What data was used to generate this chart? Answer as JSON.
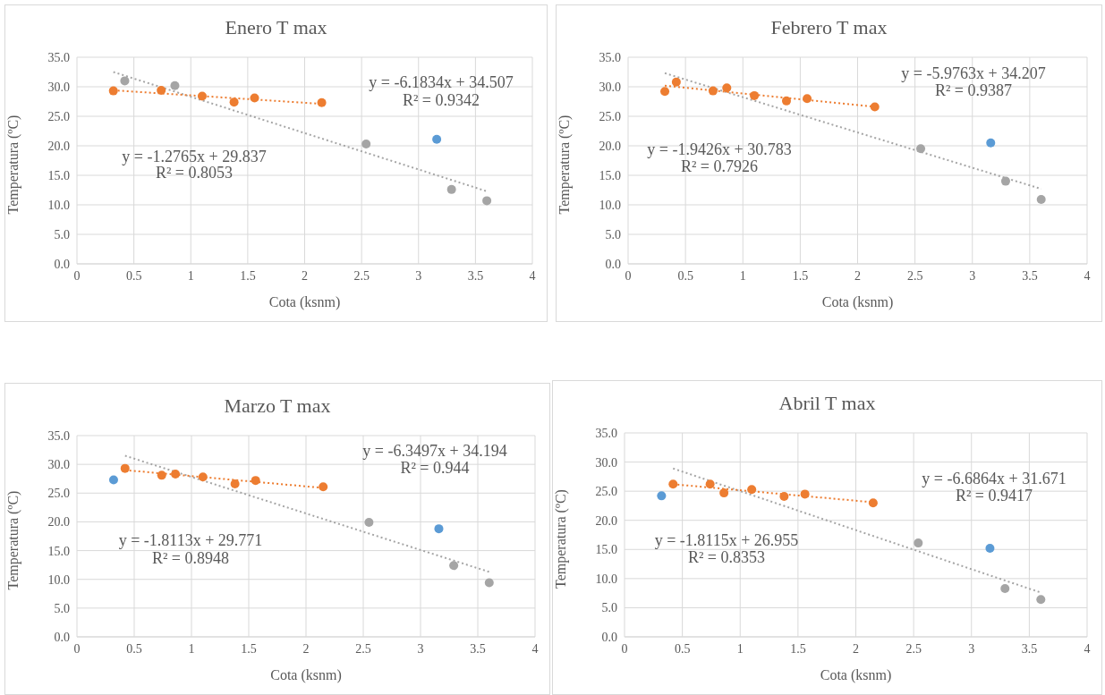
{
  "chart_data": [
    {
      "type": "scatter",
      "title": "Enero T max",
      "xlabel": "Cota (ksnm)",
      "ylabel": "Temperatura (ºC)",
      "xlim": [
        0,
        4
      ],
      "xticks": [
        0,
        0.5,
        1,
        1.5,
        2,
        2.5,
        3,
        3.5,
        4
      ],
      "ylim": [
        0,
        35
      ],
      "yticks": [
        {
          "value": 0,
          "label": "0.0"
        },
        {
          "value": 5,
          "label": "5.0"
        },
        {
          "value": 10,
          "label": "10.0"
        },
        {
          "value": 15,
          "label": "15.0"
        },
        {
          "value": 20,
          "label": "20.0"
        },
        {
          "value": 25,
          "label": "25.0"
        },
        {
          "value": 30,
          "label": "30.0"
        },
        {
          "value": 35,
          "label": "35.0"
        }
      ],
      "grid": true,
      "marker": "circle",
      "series": [
        {
          "type": "line",
          "color": "#a5a5a5",
          "line_style": "dotted",
          "marker": "none",
          "x": [
            0.32,
            3.6
          ],
          "values": [
            32.5,
            12.3
          ]
        },
        {
          "type": "line",
          "color": "#ed7d31",
          "line_style": "dotted",
          "marker": "none",
          "x": [
            0.32,
            2.15
          ],
          "values": [
            29.4,
            27.1
          ]
        },
        {
          "type": "scatter",
          "color": "#ed7d31",
          "x": [
            0.32,
            0.74,
            1.1,
            1.38,
            1.56,
            2.15
          ],
          "values": [
            29.3,
            29.4,
            28.4,
            27.4,
            28.1,
            27.3
          ]
        },
        {
          "type": "scatter",
          "color": "#a5a5a5",
          "x": [
            0.42,
            0.86,
            2.54,
            3.29,
            3.6
          ],
          "values": [
            31.0,
            30.2,
            20.3,
            12.6,
            10.7
          ]
        },
        {
          "type": "scatter",
          "color": "#5b9bd5",
          "x": [
            3.16
          ],
          "values": [
            21.1
          ]
        }
      ],
      "annotations": [
        "y = -6.1834x + 34.507",
        "R² = 0.9342",
        "y = -1.2765x + 29.837",
        "R² = 0.8053"
      ]
    },
    {
      "type": "scatter",
      "title": "Febrero T max",
      "xlabel": "Cota (ksnm)",
      "ylabel": "Temperatura (ºC)",
      "xlim": [
        0,
        4
      ],
      "xticks": [
        0,
        0.5,
        1,
        1.5,
        2,
        2.5,
        3,
        3.5,
        4
      ],
      "ylim": [
        0,
        35
      ],
      "yticks": [
        {
          "value": 0,
          "label": "0.0"
        },
        {
          "value": 5,
          "label": "5.0"
        },
        {
          "value": 10,
          "label": "10.0"
        },
        {
          "value": 15,
          "label": "15.0"
        },
        {
          "value": 20,
          "label": "20.0"
        },
        {
          "value": 25,
          "label": "25.0"
        },
        {
          "value": 30,
          "label": "30.0"
        },
        {
          "value": 35,
          "label": "35.0"
        }
      ],
      "grid": true,
      "marker": "circle",
      "series": [
        {
          "type": "line",
          "color": "#a5a5a5",
          "line_style": "dotted",
          "marker": "none",
          "x": [
            0.32,
            3.6
          ],
          "values": [
            32.3,
            12.7
          ]
        },
        {
          "type": "line",
          "color": "#ed7d31",
          "line_style": "dotted",
          "marker": "none",
          "x": [
            0.32,
            2.15
          ],
          "values": [
            30.2,
            26.6
          ]
        },
        {
          "type": "scatter",
          "color": "#ed7d31",
          "x": [
            0.32,
            0.42,
            0.74,
            0.86,
            1.1,
            1.38,
            1.56,
            2.15
          ],
          "values": [
            29.2,
            30.8,
            29.3,
            29.8,
            28.5,
            27.6,
            28.0,
            26.6
          ]
        },
        {
          "type": "scatter",
          "color": "#a5a5a5",
          "x": [
            2.55,
            3.29,
            3.6
          ],
          "values": [
            19.5,
            14.0,
            10.9
          ]
        },
        {
          "type": "scatter",
          "color": "#5b9bd5",
          "x": [
            3.16
          ],
          "values": [
            20.5
          ]
        }
      ],
      "annotations": [
        "y = -5.9763x + 34.207",
        "R² = 0.9387",
        "y = -1.9426x + 30.783",
        "R² = 0.7926"
      ]
    },
    {
      "type": "scatter",
      "title": "Marzo T max",
      "xlabel": "Cota (ksnm)",
      "ylabel": "Temperatura (ºC)",
      "xlim": [
        0,
        4
      ],
      "xticks": [
        0,
        0.5,
        1,
        1.5,
        2,
        2.5,
        3,
        3.5,
        4
      ],
      "ylim": [
        0,
        35
      ],
      "yticks": [
        {
          "value": 0,
          "label": "0.0"
        },
        {
          "value": 5,
          "label": "5.0"
        },
        {
          "value": 10,
          "label": "10.0"
        },
        {
          "value": 15,
          "label": "15.0"
        },
        {
          "value": 20,
          "label": "20.0"
        },
        {
          "value": 25,
          "label": "25.0"
        },
        {
          "value": 30,
          "label": "30.0"
        },
        {
          "value": 35,
          "label": "35.0"
        }
      ],
      "grid": true,
      "marker": "circle",
      "series": [
        {
          "type": "line",
          "color": "#a5a5a5",
          "line_style": "dotted",
          "marker": "none",
          "x": [
            0.42,
            3.6
          ],
          "values": [
            31.5,
            11.3
          ]
        },
        {
          "type": "line",
          "color": "#ed7d31",
          "line_style": "dotted",
          "marker": "none",
          "x": [
            0.42,
            2.15
          ],
          "values": [
            29.0,
            25.9
          ]
        },
        {
          "type": "scatter",
          "color": "#ed7d31",
          "x": [
            0.42,
            0.74,
            0.86,
            1.1,
            1.38,
            1.56,
            2.15
          ],
          "values": [
            29.3,
            28.1,
            28.3,
            27.8,
            26.6,
            27.2,
            26.1
          ]
        },
        {
          "type": "scatter",
          "color": "#a5a5a5",
          "x": [
            2.55,
            3.29,
            3.6
          ],
          "values": [
            19.9,
            12.4,
            9.4
          ]
        },
        {
          "type": "scatter",
          "color": "#5b9bd5",
          "x": [
            0.32,
            3.16
          ],
          "values": [
            27.3,
            18.8
          ]
        }
      ],
      "annotations": [
        "y = -6.3497x + 34.194",
        "R² = 0.944",
        "y = -1.8113x + 29.771",
        "R² = 0.8948"
      ]
    },
    {
      "type": "scatter",
      "title": "Abril T max",
      "xlabel": "Cota (ksnm)",
      "ylabel": "Temperatura (ºC)",
      "xlim": [
        0,
        4
      ],
      "xticks": [
        0,
        0.5,
        1,
        1.5,
        2,
        2.5,
        3,
        3.5,
        4
      ],
      "ylim": [
        0,
        35
      ],
      "yticks": [
        {
          "value": 0,
          "label": "0.0"
        },
        {
          "value": 5,
          "label": "5.0"
        },
        {
          "value": 10,
          "label": "10.0"
        },
        {
          "value": 15,
          "label": "15.0"
        },
        {
          "value": 20,
          "label": "20.0"
        },
        {
          "value": 25,
          "label": "25.0"
        },
        {
          "value": 30,
          "label": "30.0"
        },
        {
          "value": 35,
          "label": "35.0"
        }
      ],
      "grid": true,
      "marker": "circle",
      "series": [
        {
          "type": "line",
          "color": "#a5a5a5",
          "line_style": "dotted",
          "marker": "none",
          "x": [
            0.42,
            3.6
          ],
          "values": [
            28.9,
            7.6
          ]
        },
        {
          "type": "line",
          "color": "#ed7d31",
          "line_style": "dotted",
          "marker": "none",
          "x": [
            0.42,
            2.15
          ],
          "values": [
            26.2,
            23.1
          ]
        },
        {
          "type": "scatter",
          "color": "#ed7d31",
          "x": [
            0.42,
            0.74,
            0.86,
            1.1,
            1.38,
            1.56,
            2.15
          ],
          "values": [
            26.2,
            26.2,
            24.7,
            25.3,
            24.1,
            24.5,
            23.0
          ]
        },
        {
          "type": "scatter",
          "color": "#a5a5a5",
          "x": [
            2.54,
            3.29,
            3.6
          ],
          "values": [
            16.1,
            8.3,
            6.4
          ]
        },
        {
          "type": "scatter",
          "color": "#5b9bd5",
          "x": [
            0.32,
            3.16
          ],
          "values": [
            24.2,
            15.2
          ]
        }
      ],
      "annotations": [
        "y = -6.6864x + 31.671",
        "R² = 0.9417",
        "y = -1.8115x + 26.955",
        "R² = 0.8353"
      ]
    }
  ]
}
